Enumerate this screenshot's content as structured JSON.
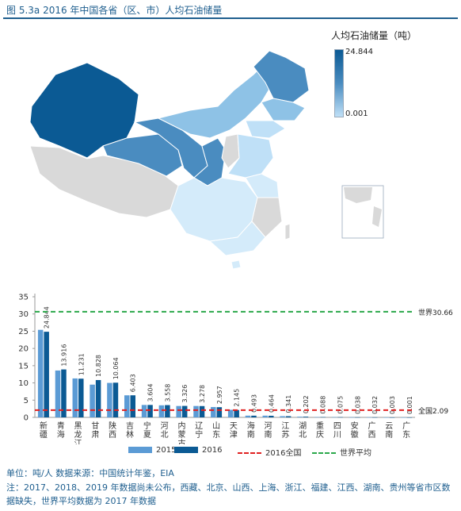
{
  "figure_title": "图 5.3a    2016 年中国各省（区、市）人均石油储量",
  "map": {
    "legend_title": "人均石油储量（吨）",
    "legend_max": "24.844",
    "legend_min": "0.001",
    "colors": {
      "high": "#0b5a94",
      "mid": "#4a8cc0",
      "low": "#bfe0f7",
      "nodata": "#d9d9d9"
    }
  },
  "chart_data": {
    "type": "bar",
    "categories": [
      "新疆",
      "青海",
      "黑龙江",
      "甘肃",
      "陕西",
      "吉林",
      "宁夏",
      "河北",
      "内蒙古",
      "辽宁",
      "山东",
      "天津",
      "海南",
      "河南",
      "江苏",
      "湖北",
      "重庆",
      "四川",
      "安徽",
      "广西",
      "云南",
      "广东"
    ],
    "series": [
      {
        "name": "2015",
        "color": "#5b9bd5",
        "values": [
          25.4,
          13.6,
          11.3,
          9.5,
          10.0,
          6.4,
          3.6,
          3.5,
          3.3,
          3.3,
          3.0,
          2.2,
          0.5,
          0.5,
          0.35,
          0.2,
          0.09,
          0.08,
          0.04,
          0.03,
          0.003,
          0.001
        ]
      },
      {
        "name": "2016",
        "color": "#0b5a94",
        "values": [
          24.844,
          13.916,
          11.231,
          10.828,
          10.064,
          6.403,
          3.604,
          3.558,
          3.326,
          3.278,
          2.957,
          2.145,
          0.493,
          0.464,
          0.341,
          0.202,
          0.088,
          0.075,
          0.038,
          0.032,
          0.003,
          0.001
        ]
      }
    ],
    "labels_2016": [
      "24.844",
      "13.916",
      "11.231",
      "10.828",
      "10.064",
      "6.403",
      "3.604",
      "3.558",
      "3.326",
      "3.278",
      "2.957",
      "2.145",
      "0.493",
      "0.464",
      "0.341",
      "0.202",
      "0.088",
      "0.075",
      "0.038",
      "0.032",
      "0.003",
      "0.001"
    ],
    "ref_lines": [
      {
        "name": "2016全国",
        "value": 2.09,
        "label": "全国2.09",
        "color": "#e02020"
      },
      {
        "name": "世界平均",
        "value": 30.66,
        "label": "世界30.66",
        "color": "#2aa84a"
      }
    ],
    "ylim": [
      0,
      35
    ],
    "yticks": [
      0,
      5,
      10,
      15,
      20,
      25,
      30,
      35
    ],
    "grid": false,
    "legend_position": "bottom"
  },
  "source": "单位：吨/人  数据来源：中国统计年鉴，EIA",
  "note": "注：2017、2018、2019 年数据尚未公布，西藏、北京、山西、上海、浙江、福建、江西、湖南、贵州等省市区数据缺失，世界平均数据为 2017 年数据"
}
